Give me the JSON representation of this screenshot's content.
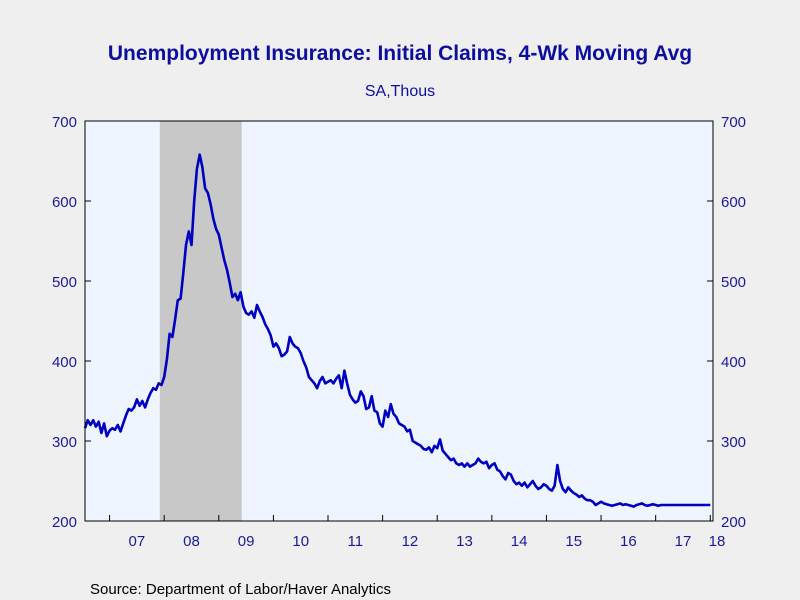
{
  "chart_data": {
    "type": "line",
    "title": "Unemployment Insurance: Initial Claims, 4-Wk Moving Avg",
    "subtitle": "SA,Thous",
    "xlabel": "",
    "ylabel": "",
    "ylim": [
      200,
      700
    ],
    "yticks": [
      200,
      300,
      400,
      500,
      600,
      700
    ],
    "ytick_labels": [
      "200",
      "300",
      "400",
      "500",
      "600",
      "700"
    ],
    "x_tick_labels": [
      {
        "label": "07",
        "x": 2007.5
      },
      {
        "label": "08",
        "x": 2008.5
      },
      {
        "label": "09",
        "x": 2009.5
      },
      {
        "label": "10",
        "x": 2010.5
      },
      {
        "label": "11",
        "x": 2011.5
      },
      {
        "label": "12",
        "x": 2012.5
      },
      {
        "label": "13",
        "x": 2013.5
      },
      {
        "label": "14",
        "x": 2014.5
      },
      {
        "label": "15",
        "x": 2015.5
      },
      {
        "label": "16",
        "x": 2016.5
      },
      {
        "label": "17",
        "x": 2017.5
      },
      {
        "label": "18",
        "x": 2018.5
      }
    ],
    "xlim": [
      2006.55,
      2018.05
    ],
    "grid": false,
    "recession": {
      "start": 2007.92,
      "end": 2009.42,
      "color": "#c8c8c8"
    },
    "line_color": "#0000c0",
    "plot_background": "#eef5ff",
    "series": [
      {
        "x": [
          2006.55,
          2006.6,
          2006.65,
          2006.7,
          2006.75,
          2006.8,
          2006.85,
          2006.9,
          2006.95,
          2007.0,
          2007.05,
          2007.1,
          2007.15,
          2007.2,
          2007.25,
          2007.3,
          2007.35,
          2007.4,
          2007.45,
          2007.5,
          2007.55,
          2007.6,
          2007.65,
          2007.7,
          2007.75,
          2007.8,
          2007.85,
          2007.9,
          2007.95,
          2008.0,
          2008.05,
          2008.1,
          2008.15,
          2008.2,
          2008.25,
          2008.3,
          2008.35,
          2008.4,
          2008.45,
          2008.5,
          2008.55,
          2008.6,
          2008.65,
          2008.7,
          2008.75,
          2008.8,
          2008.85,
          2008.9,
          2008.95,
          2009.0,
          2009.05,
          2009.1,
          2009.15,
          2009.2,
          2009.25,
          2009.3,
          2009.35,
          2009.4,
          2009.45,
          2009.5,
          2009.55,
          2009.6,
          2009.65,
          2009.7,
          2009.75,
          2009.8,
          2009.85,
          2009.9,
          2009.95,
          2010.0,
          2010.05,
          2010.1,
          2010.15,
          2010.2,
          2010.25,
          2010.3,
          2010.35,
          2010.4,
          2010.45,
          2010.5,
          2010.55,
          2010.6,
          2010.65,
          2010.7,
          2010.75,
          2010.8,
          2010.85,
          2010.9,
          2010.95,
          2011.0,
          2011.05,
          2011.1,
          2011.15,
          2011.2,
          2011.25,
          2011.3,
          2011.35,
          2011.4,
          2011.45,
          2011.5,
          2011.55,
          2011.6,
          2011.65,
          2011.7,
          2011.75,
          2011.8,
          2011.85,
          2011.9,
          2011.95,
          2012.0,
          2012.05,
          2012.1,
          2012.15,
          2012.2,
          2012.25,
          2012.3,
          2012.35,
          2012.4,
          2012.45,
          2012.5,
          2012.55,
          2012.6,
          2012.65,
          2012.7,
          2012.75,
          2012.8,
          2012.85,
          2012.9,
          2012.95,
          2013.0,
          2013.05,
          2013.1,
          2013.15,
          2013.2,
          2013.25,
          2013.3,
          2013.35,
          2013.4,
          2013.45,
          2013.5,
          2013.55,
          2013.6,
          2013.65,
          2013.7,
          2013.75,
          2013.8,
          2013.85,
          2013.9,
          2013.95,
          2014.0,
          2014.05,
          2014.1,
          2014.15,
          2014.2,
          2014.25,
          2014.3,
          2014.35,
          2014.4,
          2014.45,
          2014.5,
          2014.55,
          2014.6,
          2014.65,
          2014.7,
          2014.75,
          2014.8,
          2014.85,
          2014.9,
          2014.95,
          2015.0,
          2015.05,
          2015.1,
          2015.15,
          2015.2,
          2015.25,
          2015.3,
          2015.35,
          2015.4,
          2015.45,
          2015.5,
          2015.55,
          2015.6,
          2015.65,
          2015.7,
          2015.75,
          2015.8,
          2015.85,
          2015.9,
          2015.95,
          2016.0,
          2016.05,
          2016.1,
          2016.15,
          2016.2,
          2016.25,
          2016.3,
          2016.35,
          2016.4,
          2016.45,
          2016.5,
          2016.55,
          2016.6,
          2016.65,
          2016.7,
          2016.75,
          2016.8,
          2016.85,
          2016.9,
          2016.95,
          2017.0,
          2017.05,
          2017.1,
          2017.15,
          2017.2,
          2017.25,
          2017.3,
          2017.35,
          2017.4,
          2017.45,
          2017.5,
          2017.55,
          2017.6,
          2017.65,
          2017.7,
          2017.75,
          2017.8,
          2017.85,
          2017.9,
          2017.95,
          2018.0
        ],
        "values": [
          316,
          326,
          320,
          326,
          318,
          324,
          310,
          322,
          306,
          313,
          316,
          314,
          320,
          312,
          322,
          332,
          340,
          338,
          342,
          352,
          344,
          350,
          342,
          352,
          360,
          366,
          364,
          372,
          370,
          380,
          402,
          434,
          430,
          452,
          476,
          478,
          510,
          545,
          562,
          545,
          600,
          640,
          658,
          642,
          616,
          610,
          596,
          578,
          565,
          558,
          542,
          526,
          514,
          498,
          480,
          484,
          476,
          486,
          468,
          460,
          458,
          462,
          454,
          470,
          462,
          455,
          446,
          440,
          432,
          418,
          422,
          416,
          406,
          408,
          412,
          430,
          422,
          418,
          416,
          410,
          400,
          392,
          380,
          376,
          372,
          366,
          375,
          380,
          372,
          374,
          376,
          372,
          378,
          382,
          366,
          388,
          372,
          358,
          352,
          348,
          350,
          362,
          356,
          340,
          342,
          356,
          338,
          336,
          322,
          318,
          338,
          330,
          346,
          334,
          330,
          322,
          320,
          318,
          312,
          314,
          300,
          298,
          296,
          294,
          290,
          289,
          292,
          286,
          294,
          291,
          302,
          288,
          284,
          280,
          276,
          278,
          272,
          270,
          272,
          268,
          272,
          268,
          270,
          272,
          278,
          274,
          272,
          274,
          266,
          270,
          272,
          264,
          262,
          256,
          252,
          260,
          258,
          250,
          246,
          248,
          244,
          248,
          242,
          246,
          250,
          244,
          240,
          242,
          246,
          244,
          240,
          238,
          244,
          270,
          250,
          240,
          236,
          242,
          238,
          235,
          233,
          230,
          232,
          228,
          226,
          226,
          224,
          220,
          222,
          224,
          222,
          221,
          220,
          219,
          220,
          221,
          222,
          220,
          221,
          220,
          219,
          218,
          220,
          221,
          222,
          220,
          219,
          220,
          221,
          220,
          219,
          220,
          220,
          220,
          220,
          220,
          220,
          220,
          220,
          220,
          220,
          220,
          220,
          220,
          220,
          220,
          220,
          220,
          220,
          220
        ]
      }
    ]
  },
  "source": "Source:  Department of Labor/Haver Analytics",
  "colors": {
    "title": "#0d0d9e",
    "axis_text": "#1a1a99",
    "line": "#0000c0"
  }
}
